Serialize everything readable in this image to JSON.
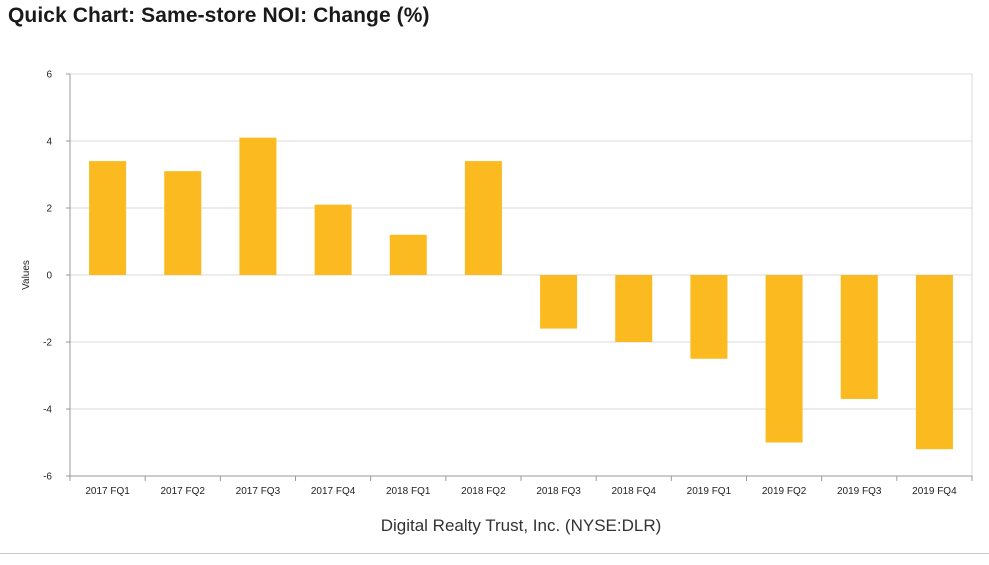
{
  "header": {
    "title": "Quick Chart: Same-store NOI: Change (%)"
  },
  "colors": {
    "bar": "#FBBA1F",
    "grid": "#d9d9d9",
    "axis": "#9a9a9a"
  },
  "chart_data": {
    "type": "bar",
    "title": "Quick Chart: Same-store NOI: Change (%)",
    "categories": [
      "2017 FQ1",
      "2017 FQ2",
      "2017 FQ3",
      "2017 FQ4",
      "2018 FQ1",
      "2018 FQ2",
      "2018 FQ3",
      "2018 FQ4",
      "2019 FQ1",
      "2019 FQ2",
      "2019 FQ3",
      "2019 FQ4"
    ],
    "values": [
      3.4,
      3.1,
      4.1,
      2.1,
      1.2,
      3.4,
      -1.6,
      -2.0,
      -2.5,
      -5.0,
      -3.7,
      -5.2
    ],
    "ylabel": "Values",
    "xlabel": "Digital Realty Trust, Inc. (NYSE:DLR)",
    "ylim": [
      -6,
      6
    ],
    "yticks": [
      6,
      4,
      2,
      0,
      -2,
      -4,
      -6
    ],
    "grid": true,
    "legend": "none"
  }
}
